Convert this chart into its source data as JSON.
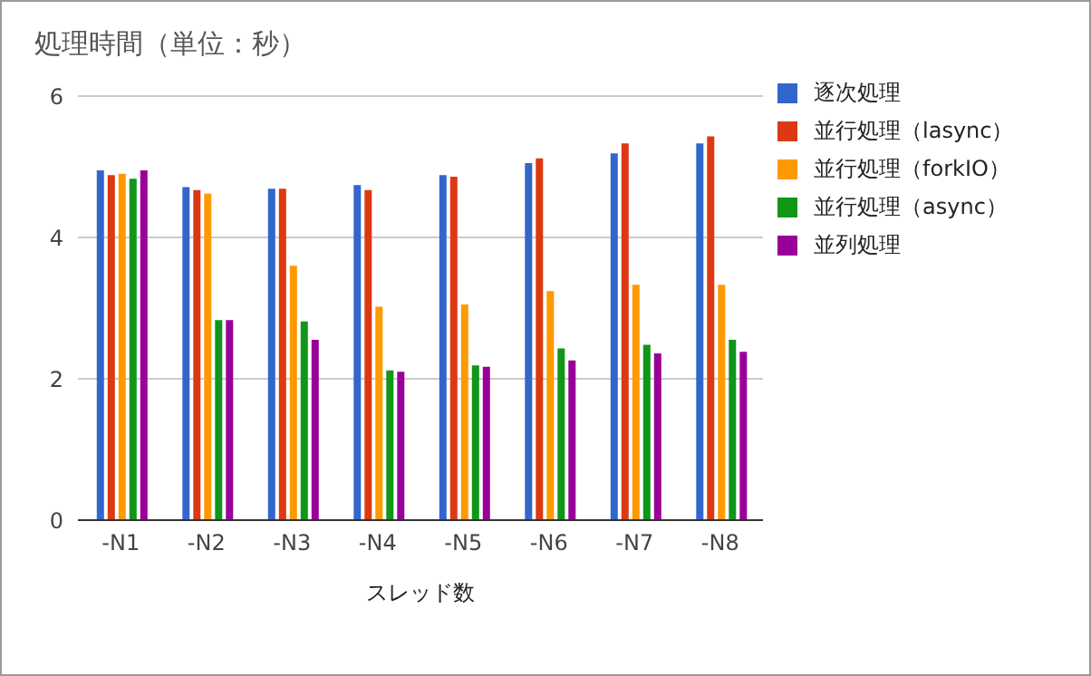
{
  "chart_data": {
    "type": "bar",
    "title": "処理時間（単位：秒）",
    "xlabel": "スレッド数",
    "categories": [
      "-N1",
      "-N2",
      "-N3",
      "-N4",
      "-N5",
      "-N6",
      "-N7",
      "-N8"
    ],
    "series": [
      {
        "name": "逐次処理",
        "color": "#3366cc",
        "values": [
          4.95,
          4.71,
          4.69,
          4.74,
          4.88,
          5.05,
          5.19,
          5.33
        ]
      },
      {
        "name": "並行処理（lasync）",
        "color": "#dc3912",
        "values": [
          4.88,
          4.67,
          4.69,
          4.67,
          4.86,
          5.12,
          5.33,
          5.43
        ]
      },
      {
        "name": "並行処理（forkIO）",
        "color": "#ff9900",
        "values": [
          4.9,
          4.62,
          3.6,
          3.02,
          3.05,
          3.24,
          3.33,
          3.33
        ]
      },
      {
        "name": "並行処理（async）",
        "color": "#109618",
        "values": [
          4.83,
          2.83,
          2.81,
          2.12,
          2.19,
          2.43,
          2.48,
          2.55
        ]
      },
      {
        "name": "並列処理",
        "color": "#990099",
        "values": [
          4.95,
          2.83,
          2.55,
          2.1,
          2.17,
          2.26,
          2.36,
          2.38
        ]
      }
    ],
    "ylim": [
      0,
      6
    ],
    "yticks": [
      0,
      2,
      4,
      6
    ],
    "grid": "y",
    "legend": "right"
  }
}
